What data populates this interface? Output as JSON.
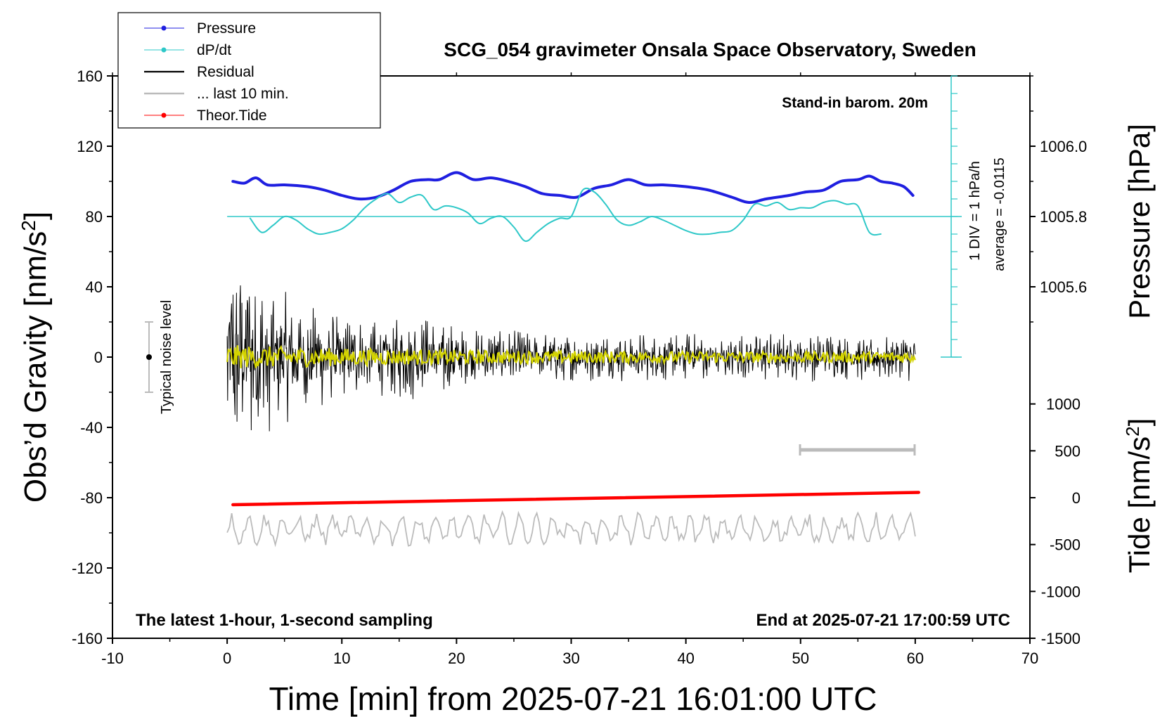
{
  "chart_data": {
    "type": "line",
    "title": "SCG_054 gravimeter Onsala Space Observatory, Sweden",
    "xlabel": "Time [min] from 2025-07-21 16:01:00 UTC",
    "ylabel_left": "Obs’d Gravity [nm/s",
    "ylabel_left_sup": "2",
    "ylabel_left_close": "]",
    "ylabel_right_pressure": "Pressure [hPa]",
    "ylabel_right_tide": "Tide [nm/s",
    "ylabel_right_tide_sup": "2",
    "ylabel_right_tide_close": "]",
    "xlim": [
      -10,
      70
    ],
    "ylim": [
      -160,
      160
    ],
    "x_ticks": [
      "-10",
      "0",
      "10",
      "20",
      "30",
      "40",
      "50",
      "60",
      "70"
    ],
    "y_ticks": [
      "160",
      "120",
      "80",
      "40",
      "0",
      "-40",
      "-80",
      "-120",
      "-160"
    ],
    "pressure_ticks": [
      "1006.0",
      "1005.8",
      "1005.6"
    ],
    "tide_ticks": [
      "1000",
      "500",
      "0",
      "-500",
      "-1000",
      "-1500"
    ],
    "annotations": {
      "stand_in": "Stand-in barom. 20m",
      "div_label": "1 DIV = 1 hPa/h",
      "average_label": "average = -0.0115",
      "noise_label": "Typical noise level",
      "bottom_left": "The latest 1-hour, 1-second sampling",
      "bottom_right": "End at 2025-07-21 17:00:59 UTC"
    },
    "legend_position": "top-left",
    "legend": [
      {
        "label": "Pressure",
        "color": "#1f1fe0"
      },
      {
        "label": "dP/dt",
        "color": "#2ec8c8"
      },
      {
        "label": "Residual",
        "color": "#000000"
      },
      {
        "label": "... last 10 min.",
        "color": "#bbbbbb"
      },
      {
        "label": "Theor.Tide",
        "color": "#ff0000"
      }
    ],
    "series": [
      {
        "name": "Pressure",
        "color": "#1f1fe0",
        "x": [
          0.5,
          1.5,
          2.5,
          3.5,
          5,
          7,
          8.5,
          10,
          11.5,
          13,
          14.5,
          16,
          17.5,
          18.5,
          20,
          21.5,
          23,
          24.5,
          26,
          27.5,
          29,
          30.5,
          32,
          33.5,
          35,
          36.5,
          38,
          40,
          42,
          44,
          45.5,
          47,
          49,
          50.5,
          52,
          53.5,
          55,
          56,
          57,
          58,
          59,
          59.8
        ],
        "values": [
          100,
          99,
          102,
          98,
          98,
          97,
          95,
          92,
          90,
          91,
          95,
          100,
          101,
          101,
          105,
          101,
          102,
          100,
          97,
          93,
          92,
          91,
          96,
          98,
          101,
          98,
          98,
          97,
          95,
          91,
          88,
          90,
          92,
          94,
          95,
          100,
          101,
          103,
          100,
          99,
          97,
          92
        ]
      },
      {
        "name": "dP/dt",
        "color": "#2ec8c8",
        "x": [
          2,
          3,
          4,
          5,
          6,
          7,
          8,
          9,
          10,
          11,
          12,
          13,
          14,
          15,
          16,
          17,
          18,
          19,
          20,
          21,
          22,
          23,
          24,
          25,
          26,
          27,
          28,
          29,
          30,
          31,
          32,
          33,
          34,
          35,
          36,
          37,
          38,
          39,
          40,
          41,
          42,
          43,
          44,
          45,
          46,
          47,
          48,
          49,
          50,
          51,
          52,
          53,
          54,
          55,
          56,
          57
        ],
        "values": [
          79,
          71,
          75,
          80,
          78,
          73,
          70,
          71,
          73,
          78,
          85,
          90,
          93,
          88,
          91,
          92,
          84,
          86,
          85,
          82,
          76,
          79,
          80,
          74,
          66,
          71,
          76,
          79,
          80,
          95,
          94,
          87,
          78,
          75,
          77,
          80,
          78,
          75,
          72,
          70,
          70,
          71,
          72,
          78,
          87,
          86,
          88,
          84,
          85,
          85,
          88,
          89,
          87,
          86,
          71,
          70
        ]
      },
      {
        "name": "Theor.Tide",
        "color": "#ff0000",
        "x": [
          0.5,
          60.3
        ],
        "values": [
          -84,
          -77
        ]
      }
    ]
  }
}
